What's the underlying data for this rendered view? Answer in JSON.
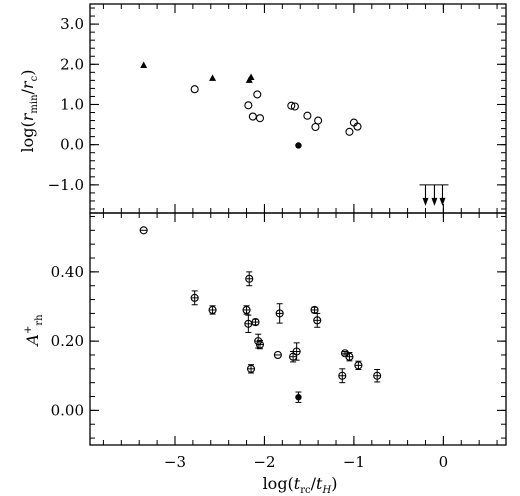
{
  "chart_data": [
    {
      "type": "scatter",
      "panel": "top",
      "xlim": [
        -3.95,
        0.7
      ],
      "ylim": [
        -1.7,
        3.5
      ],
      "ylabel": "log(r_min/r_c)",
      "ytick_values": [
        -1.0,
        0.0,
        1.0,
        2.0,
        3.0
      ],
      "ytick_labels": [
        "−1.0",
        "0.0",
        "1.0",
        "2.0",
        "3.0"
      ],
      "xtick_values": [
        -3,
        -2,
        -1,
        0
      ],
      "grid": false,
      "series": [
        {
          "marker": "filled-triangle",
          "points": [
            [
              -3.35,
              1.97
            ],
            [
              -2.58,
              1.65
            ],
            [
              -2.17,
              1.6
            ],
            [
              -2.15,
              1.67
            ]
          ]
        },
        {
          "marker": "open-circle",
          "points": [
            [
              -2.78,
              1.38
            ],
            [
              -2.18,
              0.98
            ],
            [
              -2.13,
              0.7
            ],
            [
              -2.08,
              1.25
            ],
            [
              -2.05,
              0.66
            ],
            [
              -1.7,
              0.97
            ],
            [
              -1.66,
              0.95
            ],
            [
              -1.52,
              0.72
            ],
            [
              -1.43,
              0.44
            ],
            [
              -1.4,
              0.6
            ],
            [
              -1.05,
              0.32
            ],
            [
              -1.0,
              0.55
            ],
            [
              -0.96,
              0.45
            ]
          ]
        },
        {
          "marker": "filled-circle",
          "points": [
            [
              -1.62,
              -0.02
            ]
          ]
        },
        {
          "marker": "down-arrow",
          "points": [
            [
              -0.2,
              -1.0
            ],
            [
              -0.1,
              -1.0
            ],
            [
              -0.01,
              -1.0
            ]
          ]
        }
      ]
    },
    {
      "type": "scatter",
      "panel": "bottom",
      "xlim": [
        -3.95,
        0.7
      ],
      "ylim": [
        -0.1,
        0.57
      ],
      "xlabel": "log(t_rc/t_H)",
      "ylabel": "A+_rh",
      "ytick_values": [
        0.0,
        0.2,
        0.4
      ],
      "ytick_labels": [
        "0.00",
        "0.20",
        "0.40"
      ],
      "xtick_values": [
        -3,
        -2,
        -1,
        0
      ],
      "xtick_labels": [
        "−3",
        "−2",
        "−1",
        "0"
      ],
      "grid": false,
      "series": [
        {
          "marker": "open-circle-errorbar",
          "points": [
            {
              "x": -3.35,
              "y": 0.52,
              "err": 0.0
            },
            {
              "x": -2.78,
              "y": 0.325,
              "err": 0.02
            },
            {
              "x": -2.58,
              "y": 0.29,
              "err": 0.012
            },
            {
              "x": -2.2,
              "y": 0.29,
              "err": 0.012
            },
            {
              "x": -2.17,
              "y": 0.38,
              "err": 0.02
            },
            {
              "x": -2.18,
              "y": 0.25,
              "err": 0.025
            },
            {
              "x": -2.15,
              "y": 0.12,
              "err": 0.012
            },
            {
              "x": -2.1,
              "y": 0.255,
              "err": 0.008
            },
            {
              "x": -2.07,
              "y": 0.2,
              "err": 0.02
            },
            {
              "x": -2.05,
              "y": 0.19,
              "err": 0.012
            },
            {
              "x": -1.85,
              "y": 0.16,
              "err": 0.0
            },
            {
              "x": -1.83,
              "y": 0.28,
              "err": 0.028
            },
            {
              "x": -1.68,
              "y": 0.155,
              "err": 0.015
            },
            {
              "x": -1.64,
              "y": 0.17,
              "err": 0.025
            },
            {
              "x": -1.44,
              "y": 0.29,
              "err": 0.008
            },
            {
              "x": -1.41,
              "y": 0.26,
              "err": 0.02
            },
            {
              "x": -1.13,
              "y": 0.1,
              "err": 0.02
            },
            {
              "x": -1.1,
              "y": 0.165,
              "err": 0.005
            },
            {
              "x": -1.05,
              "y": 0.155,
              "err": 0.012
            },
            {
              "x": -0.95,
              "y": 0.13,
              "err": 0.012
            },
            {
              "x": -0.74,
              "y": 0.1,
              "err": 0.018
            }
          ]
        },
        {
          "marker": "filled-circle-errorbar",
          "points": [
            {
              "x": -1.62,
              "y": 0.038,
              "err": 0.015
            }
          ]
        }
      ]
    }
  ]
}
